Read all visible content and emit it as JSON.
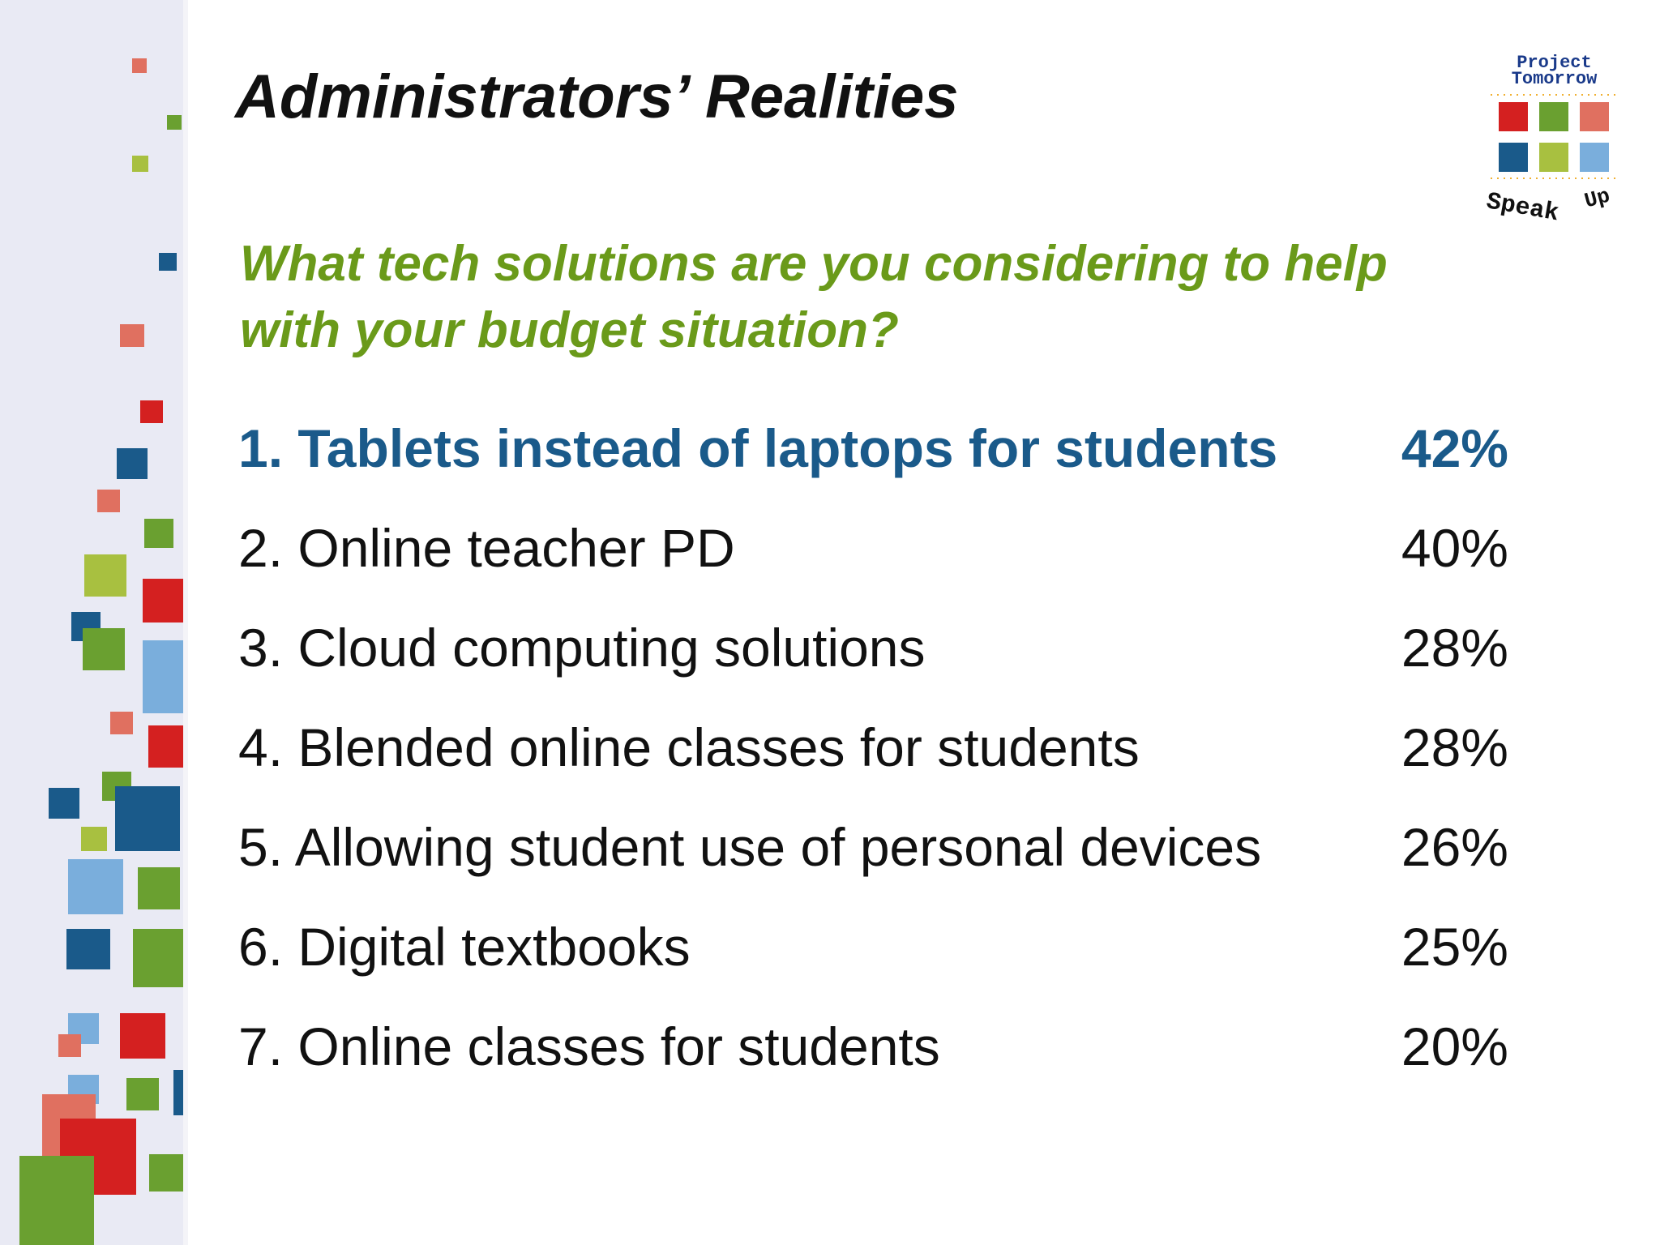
{
  "header": {
    "title": "Administrators’ Realities"
  },
  "question": {
    "lines": [
      "What tech solutions are you considering to help",
      "with your budget situation?"
    ]
  },
  "items": [
    {
      "label": "1. Tablets instead of laptops for students",
      "percent": "42%"
    },
    {
      "label": "2. Online teacher PD",
      "percent": "40%"
    },
    {
      "label": "3. Cloud computing solutions",
      "percent": "28%"
    },
    {
      "label": "4. Blended online classes for students",
      "percent": "28%"
    },
    {
      "label": "5. Allowing student use of personal devices",
      "percent": "26%"
    },
    {
      "label": "6. Digital textbooks",
      "percent": "25%"
    },
    {
      "label": "7. Online classes for students",
      "percent": "20%"
    }
  ],
  "logo": {
    "top": [
      "Project",
      "Tomorrow"
    ],
    "bottom": [
      "Speak",
      "Up"
    ]
  }
}
